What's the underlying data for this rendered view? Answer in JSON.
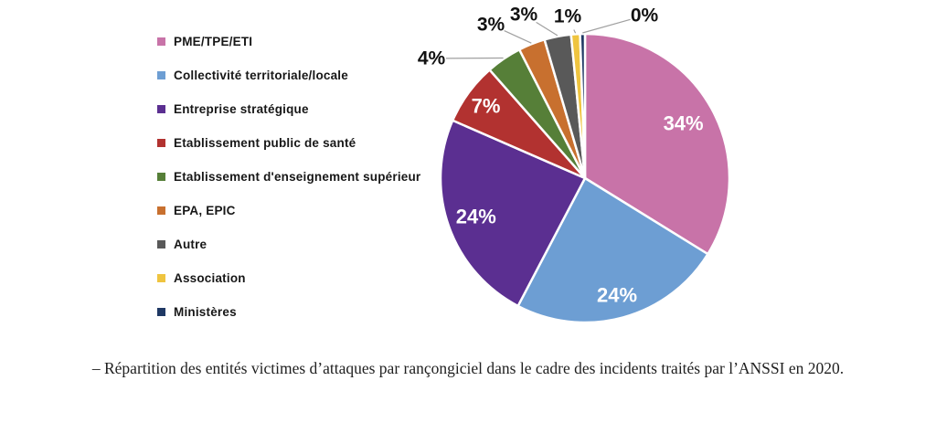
{
  "figure": {
    "caption": "– Répartition des entités victimes d’attaques par rançongiciel dans le cadre des incidents traités par l’ANSSI en 2020."
  },
  "chart_data": {
    "type": "pie",
    "title": "",
    "legend_position": "left",
    "start_angle_deg": 0,
    "direction": "clockwise",
    "slices": [
      {
        "label": "PME/TPE/ETI",
        "value": 34,
        "display": "34%",
        "color": "#C873A8"
      },
      {
        "label": "Collectivité territoriale/locale",
        "value": 24,
        "display": "24%",
        "color": "#6D9ED3"
      },
      {
        "label": "Entreprise stratégique",
        "value": 24,
        "display": "24%",
        "color": "#5B2F91"
      },
      {
        "label": "Etablissement public de santé",
        "value": 7,
        "display": "7%",
        "color": "#B23230"
      },
      {
        "label": "Etablissement d'enseignement supérieur",
        "value": 4,
        "display": "4%",
        "color": "#567F38"
      },
      {
        "label": "EPA, EPIC",
        "value": 3,
        "display": "3%",
        "color": "#C8702F"
      },
      {
        "label": "Autre",
        "value": 3,
        "display": "3%",
        "color": "#595959"
      },
      {
        "label": "Association",
        "value": 1,
        "display": "1%",
        "color": "#EFC43F"
      },
      {
        "label": "Ministères",
        "value": 0,
        "display": "0%",
        "color": "#1F3864"
      }
    ],
    "leader_line_color": "#A0A0A0"
  }
}
